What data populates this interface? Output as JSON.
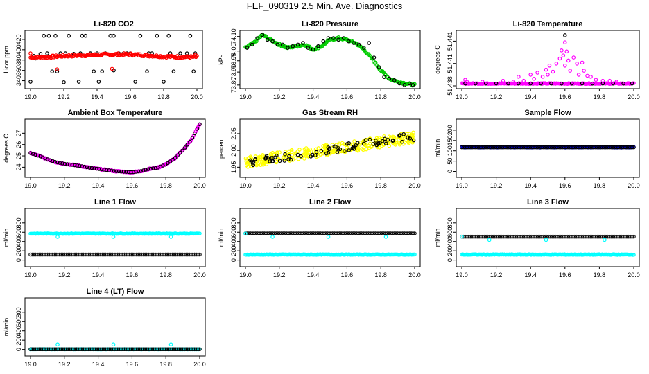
{
  "main_title": "FEF_090319  2.5 Min. Ave. Diagnostics",
  "chart_data": [
    {
      "id": "co2",
      "type": "scatter",
      "title": "Li-820 CO2",
      "ylabel": "Licor ppm",
      "xlim": [
        19.0,
        20.0
      ],
      "ylim": [
        330,
        432
      ],
      "xticks": [
        "19.0",
        "19.2",
        "19.4",
        "19.6",
        "19.8",
        "20.0"
      ],
      "yticks": [
        "340",
        "360",
        "380",
        "400",
        "420"
      ],
      "series": [
        {
          "name": "black",
          "color": "#000000",
          "kind": "points",
          "x": [
            19.0,
            19.02,
            19.03,
            19.06,
            19.08,
            19.1,
            19.11,
            19.13,
            19.15,
            19.16,
            19.18,
            19.2,
            19.21,
            19.23,
            19.26,
            19.29,
            19.3,
            19.31,
            19.33,
            19.36,
            19.38,
            19.4,
            19.41,
            19.43,
            19.45,
            19.48,
            19.5,
            19.5,
            19.53,
            19.56,
            19.58,
            19.6,
            19.63,
            19.66,
            19.7,
            19.71,
            19.73,
            19.76,
            19.8,
            19.83,
            19.84,
            19.86,
            19.9,
            19.94,
            19.96,
            19.98,
            19.99
          ],
          "y": [
            338,
            388,
            383,
            392,
            427,
            393,
            427,
            358,
            427,
            358,
            393,
            337,
            393,
            427,
            392,
            338,
            393,
            427,
            427,
            393,
            358,
            393,
            338,
            358,
            393,
            427,
            427,
            360,
            393,
            393,
            393,
            393,
            338,
            427,
            358,
            393,
            393,
            427,
            338,
            427,
            393,
            358,
            393,
            393,
            427,
            358,
            393
          ]
        },
        {
          "name": "red",
          "color": "#ff0000",
          "kind": "band",
          "x": [
            19.0,
            19.1,
            19.2,
            19.3,
            19.4,
            19.5,
            19.6,
            19.7,
            19.8,
            19.9,
            20.0
          ],
          "y": [
            385,
            386,
            388,
            389,
            390,
            391,
            391,
            389,
            387,
            386,
            386
          ],
          "spread": 2.2
        },
        {
          "name": "red-outliers",
          "color": "#ff0000",
          "kind": "points",
          "x": [
            19.0,
            19.16,
            19.49,
            19.99
          ],
          "y": [
            393,
            362,
            363,
            390
          ]
        }
      ]
    },
    {
      "id": "press",
      "type": "scatter",
      "title": "Li-820 Pressure",
      "ylabel": "kPa",
      "xlim": [
        19.0,
        20.0
      ],
      "ylim": [
        73.795,
        74.12
      ],
      "xticks": [
        "19.0",
        "19.2",
        "19.4",
        "19.6",
        "19.8",
        "20.0"
      ],
      "yticks": [
        "73.80",
        "73.90",
        "73.95",
        "74.00",
        "74.10"
      ],
      "series": [
        {
          "name": "green",
          "color": "#00cc00",
          "kind": "band",
          "x": [
            19.0,
            19.05,
            19.1,
            19.15,
            19.2,
            19.25,
            19.3,
            19.35,
            19.4,
            19.45,
            19.5,
            19.55,
            19.6,
            19.65,
            19.7,
            19.75,
            19.8,
            19.85,
            19.9,
            19.95,
            20.0
          ],
          "y": [
            74.03,
            74.06,
            74.11,
            74.08,
            74.05,
            74.03,
            74.04,
            74.05,
            74.02,
            74.04,
            74.08,
            74.09,
            74.08,
            74.06,
            74.02,
            73.96,
            73.89,
            73.84,
            73.82,
            73.81,
            73.8
          ],
          "spread": 0.006
        },
        {
          "name": "black",
          "color": "#000000",
          "kind": "points",
          "x": [
            19.01,
            19.04,
            19.07,
            19.1,
            19.13,
            19.16,
            19.19,
            19.22,
            19.25,
            19.28,
            19.31,
            19.34,
            19.37,
            19.4,
            19.43,
            19.46,
            19.49,
            19.52,
            19.55,
            19.58,
            19.61,
            19.64,
            19.67,
            19.7,
            19.73,
            19.76,
            19.79,
            19.82,
            19.85,
            19.88,
            19.91,
            19.94,
            19.97,
            19.99
          ],
          "y": [
            74.03,
            74.05,
            74.09,
            74.11,
            74.08,
            74.07,
            74.05,
            74.05,
            74.03,
            74.04,
            74.05,
            74.06,
            74.03,
            74.02,
            74.04,
            74.07,
            74.09,
            74.09,
            74.08,
            74.09,
            74.07,
            74.06,
            74.05,
            74.03,
            74.06,
            73.97,
            73.91,
            73.85,
            73.84,
            73.83,
            73.81,
            73.8,
            73.81,
            73.8
          ]
        }
      ]
    },
    {
      "id": "ltemp",
      "type": "scatter",
      "title": "Li-820 Temperature",
      "ylabel": "degrees C",
      "xlim": [
        19.0,
        20.0
      ],
      "ylim": [
        51.4375,
        51.4427
      ],
      "xticks": [
        "19.0",
        "19.2",
        "19.4",
        "19.6",
        "19.8",
        "20.0"
      ],
      "yticks": [
        "51.438",
        "51.441",
        "51.441"
      ],
      "series": [
        {
          "name": "baseline",
          "color": "#ff00ff",
          "kind": "band",
          "x": [
            19.0,
            20.0
          ],
          "y": [
            51.43773,
            51.43773
          ],
          "spread": 4e-05
        },
        {
          "name": "black",
          "color": "#000000",
          "kind": "points",
          "x": [
            19.02,
            19.08,
            19.14,
            19.2,
            19.27,
            19.33,
            19.4,
            19.46,
            19.52,
            19.58,
            19.64,
            19.7,
            19.76,
            19.82,
            19.88,
            19.94,
            19.99,
            19.6
          ],
          "y": [
            51.43773,
            51.43773,
            51.43773,
            51.43773,
            51.43773,
            51.43773,
            51.43773,
            51.43773,
            51.43773,
            51.43773,
            51.43773,
            51.43773,
            51.43773,
            51.43773,
            51.43773,
            51.43773,
            51.43773,
            51.4425
          ]
        },
        {
          "name": "magenta",
          "color": "#ff00ff",
          "kind": "points",
          "x": [
            19.02,
            19.03,
            19.12,
            19.24,
            19.3,
            19.33,
            19.36,
            19.4,
            19.42,
            19.44,
            19.47,
            19.49,
            19.5,
            19.51,
            19.53,
            19.55,
            19.57,
            19.58,
            19.59,
            19.6,
            19.6,
            19.61,
            19.62,
            19.63,
            19.65,
            19.67,
            19.68,
            19.7,
            19.71,
            19.73,
            19.75,
            19.78,
            19.82,
            19.86,
            19.9
          ],
          "y": [
            51.4381,
            51.4379,
            51.4379,
            51.438,
            51.4379,
            51.4384,
            51.438,
            51.4386,
            51.4382,
            51.4388,
            51.4384,
            51.4391,
            51.4386,
            51.4395,
            51.4389,
            51.4397,
            51.4402,
            51.441,
            51.4405,
            51.4418,
            51.4395,
            51.4409,
            51.44,
            51.439,
            51.4403,
            51.4397,
            51.4386,
            51.4398,
            51.439,
            51.4385,
            51.4384,
            51.4381,
            51.438,
            51.438,
            51.4379
          ]
        }
      ]
    },
    {
      "id": "amb",
      "type": "scatter",
      "title": "Ambient Box Temperature",
      "ylabel": "degrees C",
      "xlim": [
        19.0,
        20.0
      ],
      "ylim": [
        23.35,
        28.0
      ],
      "xticks": [
        "19.0",
        "19.2",
        "19.4",
        "19.6",
        "19.8",
        "20.0"
      ],
      "yticks": [
        "24",
        "25",
        "26",
        "27"
      ],
      "series": [
        {
          "name": "magenta",
          "color": "#ff00ff",
          "kind": "band",
          "x": [
            19.0,
            19.05,
            19.1,
            19.15,
            19.2,
            19.25,
            19.3,
            19.35,
            19.4,
            19.45,
            19.5,
            19.55,
            19.6,
            19.65,
            19.7,
            19.75,
            19.8,
            19.85,
            19.9,
            19.95,
            20.0
          ],
          "y": [
            25.25,
            25.0,
            24.7,
            24.45,
            24.3,
            24.2,
            24.1,
            23.95,
            23.85,
            23.75,
            23.65,
            23.6,
            23.55,
            23.65,
            23.85,
            23.95,
            24.25,
            24.75,
            25.5,
            26.4,
            27.8
          ],
          "spread": 0.05
        },
        {
          "name": "black",
          "color": "#000000",
          "kind": "curvepoints",
          "x": [
            19.0,
            19.05,
            19.1,
            19.15,
            19.2,
            19.25,
            19.3,
            19.35,
            19.4,
            19.45,
            19.5,
            19.55,
            19.6,
            19.65,
            19.7,
            19.75,
            19.8,
            19.85,
            19.9,
            19.95,
            20.0
          ],
          "y": [
            25.25,
            25.0,
            24.7,
            24.45,
            24.3,
            24.2,
            24.1,
            23.95,
            23.85,
            23.75,
            23.65,
            23.6,
            23.55,
            23.65,
            23.85,
            23.95,
            24.25,
            24.75,
            25.5,
            26.4,
            27.8
          ],
          "count": 70
        }
      ]
    },
    {
      "id": "rh",
      "type": "scatter",
      "title": "Gas Stream RH",
      "ylabel": "percent",
      "xlim": [
        19.0,
        20.0
      ],
      "ylim": [
        1.928,
        2.085
      ],
      "xticks": [
        "19.0",
        "19.2",
        "19.4",
        "19.6",
        "19.8",
        "20.0"
      ],
      "yticks": [
        "1.95",
        "2.00",
        "2.05"
      ],
      "series": [
        {
          "name": "yellow",
          "color": "#ffff00",
          "kind": "cloud",
          "x": [
            19.0,
            20.0
          ],
          "y": [
            1.965,
            2.04
          ],
          "spread": 0.016,
          "count": 320
        },
        {
          "name": "black",
          "color": "#000000",
          "kind": "cloud",
          "x": [
            19.0,
            20.0
          ],
          "y": [
            1.963,
            2.042
          ],
          "spread": 0.012,
          "count": 75
        }
      ]
    },
    {
      "id": "sflow",
      "type": "scatter",
      "title": "Sample Flow",
      "ylabel": "ml/min",
      "xlim": [
        19.0,
        20.0
      ],
      "ylim": [
        -15,
        240
      ],
      "xticks": [
        "19.0",
        "19.2",
        "19.4",
        "19.6",
        "19.8",
        "20.0"
      ],
      "yticks": [
        "0",
        "50",
        "100",
        "150",
        "200"
      ],
      "series": [
        {
          "name": "blue",
          "color": "#0000ff",
          "kind": "band",
          "x": [
            19.0,
            20.0
          ],
          "y": [
            118,
            118
          ],
          "spread": 2
        },
        {
          "name": "black",
          "color": "#000000",
          "kind": "curvepoints",
          "x": [
            19.0,
            20.0
          ],
          "y": [
            117,
            117
          ],
          "count": 100
        }
      ]
    },
    {
      "id": "l1",
      "type": "scatter",
      "title": "Line 1 Flow",
      "ylabel": "ml/min",
      "xlim": [
        19.0,
        20.0
      ],
      "ylim": [
        -80,
        1050
      ],
      "xticks": [
        "19.0",
        "19.2",
        "19.4",
        "19.6",
        "19.8",
        "20.0"
      ],
      "yticks": [
        "0",
        "200",
        "400",
        "600",
        "800"
      ],
      "series": [
        {
          "name": "cyan",
          "color": "#00ffff",
          "kind": "band",
          "x": [
            19.0,
            20.0
          ],
          "y": [
            570,
            570
          ],
          "spread": 6
        },
        {
          "name": "black",
          "color": "#000000",
          "kind": "curvepoints",
          "x": [
            19.0,
            20.0
          ],
          "y": [
            120,
            120
          ],
          "count": 100
        },
        {
          "name": "cyan-outliers",
          "color": "#00ffff",
          "kind": "points",
          "x": [
            19.16,
            19.49,
            19.83
          ],
          "y": [
            500,
            500,
            500
          ]
        }
      ]
    },
    {
      "id": "l2",
      "type": "scatter",
      "title": "Line 2 Flow",
      "ylabel": "ml/min",
      "xlim": [
        19.0,
        20.0
      ],
      "ylim": [
        -80,
        1050
      ],
      "xticks": [
        "19.0",
        "19.2",
        "19.4",
        "19.6",
        "19.8",
        "20.0"
      ],
      "yticks": [
        "0",
        "200",
        "400",
        "600",
        "800"
      ],
      "series": [
        {
          "name": "cyan",
          "color": "#00ffff",
          "kind": "band",
          "x": [
            19.0,
            20.0
          ],
          "y": [
            120,
            120
          ],
          "spread": 5
        },
        {
          "name": "black",
          "color": "#000000",
          "kind": "curvepoints",
          "x": [
            19.0,
            20.0
          ],
          "y": [
            575,
            575
          ],
          "count": 100
        },
        {
          "name": "cyan-outliers",
          "color": "#00ffff",
          "kind": "points",
          "x": [
            19.0,
            19.16,
            19.49,
            19.83
          ],
          "y": [
            570,
            500,
            500,
            500
          ]
        }
      ]
    },
    {
      "id": "l3",
      "type": "scatter",
      "title": "Line 3 Flow",
      "ylabel": "ml/min",
      "xlim": [
        19.0,
        20.0
      ],
      "ylim": [
        -80,
        1050
      ],
      "xticks": [
        "19.0",
        "19.2",
        "19.4",
        "19.6",
        "19.8",
        "20.0"
      ],
      "yticks": [
        "0",
        "200",
        "400",
        "600",
        "800"
      ],
      "series": [
        {
          "name": "cyan",
          "color": "#00ffff",
          "kind": "band",
          "x": [
            19.0,
            20.0
          ],
          "y": [
            120,
            120
          ],
          "spread": 6
        },
        {
          "name": "black",
          "color": "#000000",
          "kind": "curvepoints",
          "x": [
            19.0,
            20.0
          ],
          "y": [
            505,
            505
          ],
          "count": 100
        },
        {
          "name": "cyan-outliers",
          "color": "#00ffff",
          "kind": "points",
          "x": [
            19.0,
            19.16,
            19.49,
            19.83
          ],
          "y": [
            505,
            435,
            435,
            435
          ]
        }
      ]
    },
    {
      "id": "l4",
      "type": "scatter",
      "title": "Line 4 (LT) Flow",
      "ylabel": "ml/min",
      "xlim": [
        19.0,
        20.0
      ],
      "ylim": [
        -80,
        1050
      ],
      "xticks": [
        "19.0",
        "19.2",
        "19.4",
        "19.6",
        "19.8",
        "20.0"
      ],
      "yticks": [
        "0",
        "200",
        "400",
        "600",
        "800"
      ],
      "series": [
        {
          "name": "cyan",
          "color": "#00ffff",
          "kind": "band",
          "x": [
            19.0,
            20.0
          ],
          "y": [
            5,
            5
          ],
          "spread": 4
        },
        {
          "name": "black",
          "color": "#000000",
          "kind": "curvepoints",
          "x": [
            19.0,
            20.0
          ],
          "y": [
            5,
            5
          ],
          "count": 100
        },
        {
          "name": "cyan-outliers",
          "color": "#00ffff",
          "kind": "points",
          "x": [
            19.16,
            19.49,
            19.83
          ],
          "y": [
            110,
            110,
            110
          ]
        }
      ]
    }
  ]
}
